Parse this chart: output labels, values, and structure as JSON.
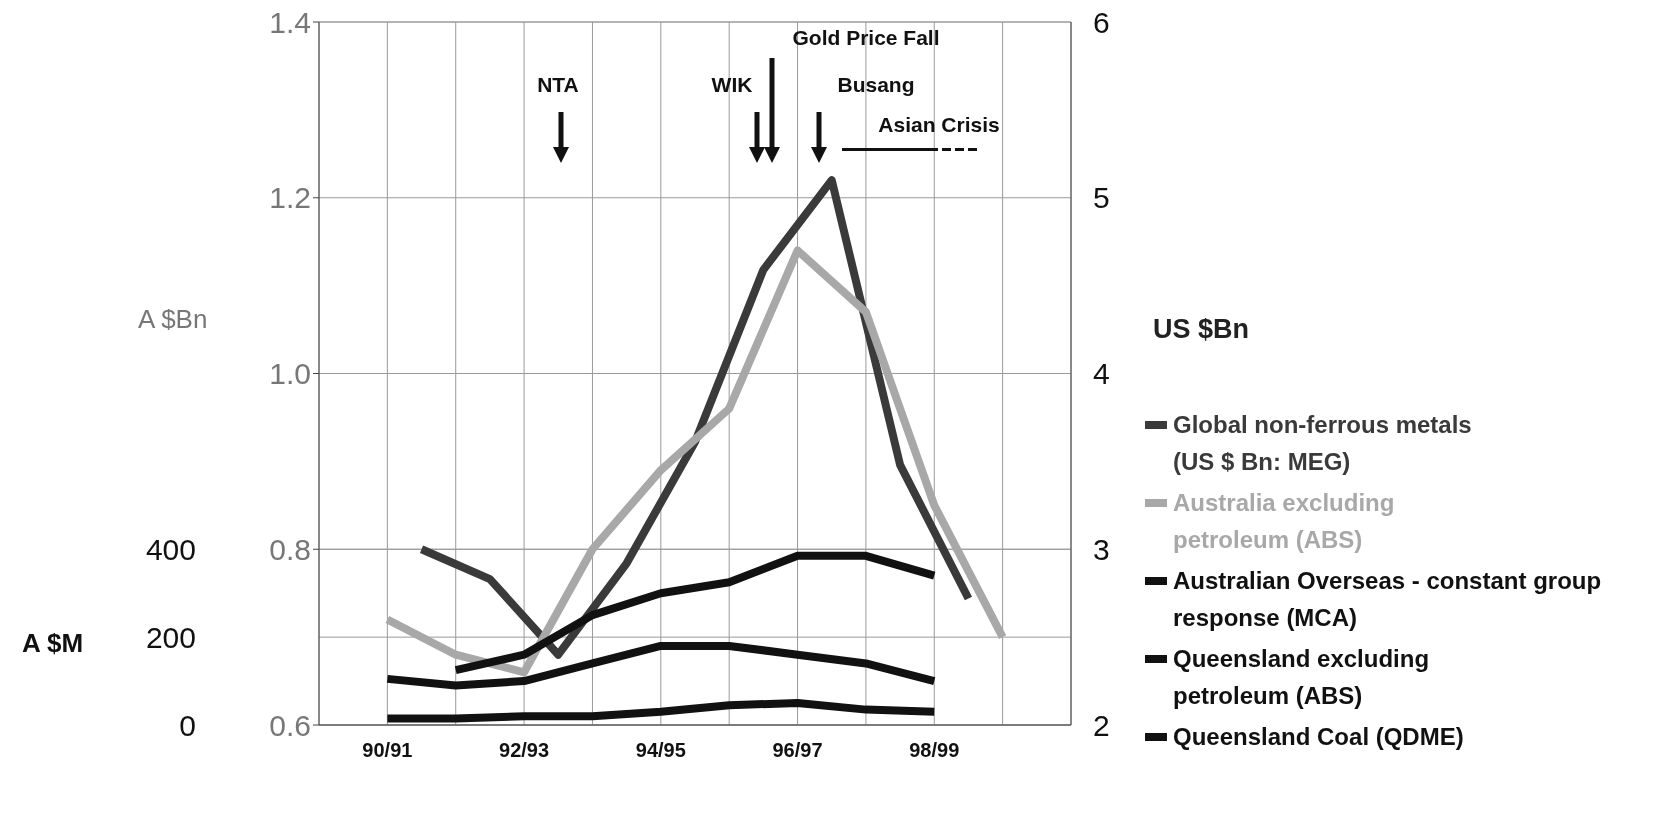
{
  "chart_data": {
    "type": "line",
    "ylabel": "A $Bn",
    "y2label": "US $Bn",
    "y3label": "A $M",
    "x": [
      "1991-01",
      "1992-01",
      "1993-01",
      "1994-01",
      "1995-01",
      "1996-01",
      "1997-01",
      "1998-01",
      "1999-01",
      "2000-01"
    ],
    "xlim": [
      "1990-01",
      "2001-01"
    ],
    "xticks": [
      {
        "value": "1990-01",
        "label": null
      },
      {
        "value": "1991-01",
        "label": "90/91"
      },
      {
        "value": "1992-01",
        "label": null
      },
      {
        "value": "1993-01",
        "label": "92/93"
      },
      {
        "value": "1994-01",
        "label": null
      },
      {
        "value": "1995-01",
        "label": "94/95"
      },
      {
        "value": "1996-01",
        "label": null
      },
      {
        "value": "1997-01",
        "label": "96/97"
      },
      {
        "value": "1998-01",
        "label": null
      },
      {
        "value": "1999-01",
        "label": "98/99"
      },
      {
        "value": "2000-01",
        "label": null
      },
      {
        "value": "2001-01",
        "label": null
      }
    ],
    "ylim": [
      0.6,
      1.4
    ],
    "yticks": [
      0.6,
      0.8,
      {
        "value": 1,
        "label": "1.0"
      },
      1.2,
      1.4
    ],
    "y2lim": [
      2,
      6
    ],
    "y2ticks": [
      2,
      3,
      4,
      5,
      6
    ],
    "y3lim": [
      0,
      1600
    ],
    "y3ticks": [
      0,
      200,
      400
    ],
    "series": [
      {
        "name": "Global non-ferrous metals (US $ Bn: MEG)",
        "color": "#3a3a3a",
        "axis": "y2",
        "x": [
          "1991-07",
          "1992-07",
          "1993-07",
          "1994-07",
          "1995-07",
          "1996-07",
          "1997-07",
          "1998-07",
          "1999-07"
        ],
        "values": [
          3.0,
          2.83,
          2.4,
          2.92,
          3.61,
          4.59,
          5.1,
          3.48,
          2.72
        ]
      },
      {
        "name": "Australia excluding petroleum (ABS)",
        "color": "#a8a8a8",
        "values": [
          0.72,
          0.68,
          0.66,
          0.8,
          0.89,
          0.96,
          1.14,
          1.07,
          0.85,
          0.7
        ]
      },
      {
        "name": "Australian Overseas - constant group response (MCA)",
        "color": "#111111",
        "axis": "y3",
        "values": [
          null,
          125,
          160,
          250,
          300,
          325,
          385,
          385,
          340,
          null
        ]
      },
      {
        "name": "Queensland excluding petroleum (ABS)",
        "color": "#111111",
        "axis": "y3",
        "values": [
          105,
          90,
          100,
          140,
          180,
          180,
          160,
          140,
          100,
          null
        ]
      },
      {
        "name": "Queensland Coal (QDME)",
        "color": "#111111",
        "axis": "y3",
        "values": [
          15,
          15,
          20,
          20,
          30,
          45,
          50,
          35,
          30,
          null
        ]
      }
    ],
    "annotations": [
      "NTA",
      "WIK",
      "Gold Price Fall",
      "Busang",
      "Asian Crisis"
    ],
    "grid": true,
    "legend": "right",
    "marker": "none",
    "line_style": "solid"
  }
}
